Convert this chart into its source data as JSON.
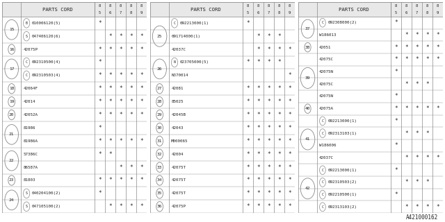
{
  "bg_color": "#ffffff",
  "line_color": "#888888",
  "text_color": "#222222",
  "part_num_label": "A421000162",
  "col_headers": [
    "85",
    "86",
    "87",
    "88",
    "89"
  ],
  "tables": [
    {
      "rows": [
        {
          "ref": "15",
          "subrows": [
            {
              "code": "B",
              "part": "010006120(5)",
              "stars": [
                true,
                false,
                false,
                false,
                false
              ]
            },
            {
              "code": "S",
              "part": "047406120(6)",
              "stars": [
                false,
                true,
                true,
                true,
                true
              ]
            }
          ]
        },
        {
          "ref": "16",
          "subrows": [
            {
              "code": "",
              "part": "42075P",
              "stars": [
                true,
                true,
                true,
                true,
                true
              ]
            }
          ]
        },
        {
          "ref": "17",
          "subrows": [
            {
              "code": "C",
              "part": "092310500(4)",
              "stars": [
                true,
                false,
                false,
                false,
                false
              ]
            },
            {
              "code": "C",
              "part": "092310503(4)",
              "stars": [
                true,
                true,
                true,
                true,
                true
              ]
            }
          ]
        },
        {
          "ref": "18",
          "subrows": [
            {
              "code": "",
              "part": "42064F",
              "stars": [
                true,
                true,
                true,
                true,
                true
              ]
            }
          ]
        },
        {
          "ref": "19",
          "subrows": [
            {
              "code": "",
              "part": "42014",
              "stars": [
                true,
                true,
                true,
                true,
                true
              ]
            }
          ]
        },
        {
          "ref": "20",
          "subrows": [
            {
              "code": "",
              "part": "42052A",
              "stars": [
                true,
                true,
                true,
                true,
                true
              ]
            }
          ]
        },
        {
          "ref": "21",
          "subrows": [
            {
              "code": "",
              "part": "81986",
              "stars": [
                true,
                false,
                false,
                false,
                false
              ]
            },
            {
              "code": "",
              "part": "81986A",
              "stars": [
                true,
                true,
                true,
                true,
                true
              ]
            }
          ]
        },
        {
          "ref": "22",
          "subrows": [
            {
              "code": "",
              "part": "57386C",
              "stars": [
                true,
                true,
                false,
                false,
                false
              ]
            },
            {
              "code": "",
              "part": "86587A",
              "stars": [
                false,
                false,
                true,
                true,
                true
              ]
            }
          ]
        },
        {
          "ref": "23",
          "subrows": [
            {
              "code": "",
              "part": "81803",
              "stars": [
                true,
                true,
                true,
                true,
                true
              ]
            }
          ]
        },
        {
          "ref": "24",
          "subrows": [
            {
              "code": "S",
              "part": "040204100(2)",
              "stars": [
                true,
                false,
                false,
                false,
                false
              ]
            },
            {
              "code": "S",
              "part": "047105100(2)",
              "stars": [
                false,
                true,
                true,
                true,
                true
              ]
            }
          ]
        }
      ]
    },
    {
      "rows": [
        {
          "ref": "25",
          "subrows": [
            {
              "code": "C",
              "part": "092213000(1)",
              "stars": [
                true,
                false,
                false,
                false,
                false
              ]
            },
            {
              "code": "",
              "part": "091714000(1)",
              "stars": [
                false,
                true,
                true,
                true,
                false
              ]
            },
            {
              "code": "",
              "part": "42037C",
              "stars": [
                false,
                true,
                true,
                true,
                true
              ]
            }
          ]
        },
        {
          "ref": "26",
          "subrows": [
            {
              "code": "N",
              "part": "023705000(5)",
              "stars": [
                true,
                true,
                true,
                true,
                false
              ]
            },
            {
              "code": "",
              "part": "N370014",
              "stars": [
                false,
                false,
                false,
                false,
                true
              ]
            }
          ]
        },
        {
          "ref": "27",
          "subrows": [
            {
              "code": "",
              "part": "42081",
              "stars": [
                true,
                true,
                true,
                true,
                true
              ]
            }
          ]
        },
        {
          "ref": "28",
          "subrows": [
            {
              "code": "",
              "part": "85025",
              "stars": [
                true,
                true,
                true,
                true,
                true
              ]
            }
          ]
        },
        {
          "ref": "29",
          "subrows": [
            {
              "code": "",
              "part": "42045B",
              "stars": [
                true,
                true,
                true,
                true,
                true
              ]
            }
          ]
        },
        {
          "ref": "30",
          "subrows": [
            {
              "code": "",
              "part": "42043",
              "stars": [
                true,
                true,
                true,
                true,
                true
              ]
            }
          ]
        },
        {
          "ref": "31",
          "subrows": [
            {
              "code": "",
              "part": "M000065",
              "stars": [
                true,
                true,
                true,
                true,
                true
              ]
            }
          ]
        },
        {
          "ref": "32",
          "subrows": [
            {
              "code": "",
              "part": "42004",
              "stars": [
                true,
                true,
                true,
                true,
                true
              ]
            }
          ]
        },
        {
          "ref": "33",
          "subrows": [
            {
              "code": "",
              "part": "42075T",
              "stars": [
                true,
                true,
                true,
                true,
                true
              ]
            }
          ]
        },
        {
          "ref": "34",
          "subrows": [
            {
              "code": "",
              "part": "42075T",
              "stars": [
                true,
                true,
                true,
                true,
                true
              ]
            }
          ]
        },
        {
          "ref": "35",
          "subrows": [
            {
              "code": "",
              "part": "42075T",
              "stars": [
                true,
                true,
                true,
                true,
                true
              ]
            }
          ]
        },
        {
          "ref": "36",
          "subrows": [
            {
              "code": "",
              "part": "42075P",
              "stars": [
                true,
                true,
                true,
                true,
                true
              ]
            }
          ]
        }
      ]
    },
    {
      "rows": [
        {
          "ref": "37",
          "subrows": [
            {
              "code": "C",
              "part": "092308000(2)",
              "stars": [
                true,
                false,
                false,
                false,
                false
              ]
            },
            {
              "code": "",
              "part": "W186013",
              "stars": [
                false,
                true,
                true,
                true,
                true
              ]
            }
          ]
        },
        {
          "ref": "38",
          "subrows": [
            {
              "code": "",
              "part": "42051",
              "stars": [
                true,
                true,
                true,
                true,
                true
              ]
            }
          ]
        },
        {
          "ref": "39",
          "subrows": [
            {
              "code": "",
              "part": "42075C",
              "stars": [
                true,
                true,
                true,
                true,
                true
              ]
            },
            {
              "code": "",
              "part": "42075N",
              "stars": [
                true,
                false,
                false,
                false,
                false
              ]
            },
            {
              "code": "",
              "part": "42075C",
              "stars": [
                false,
                true,
                true,
                true,
                false
              ]
            },
            {
              "code": "",
              "part": "42075N",
              "stars": [
                true,
                false,
                false,
                false,
                false
              ]
            }
          ]
        },
        {
          "ref": "40",
          "subrows": [
            {
              "code": "",
              "part": "42075A",
              "stars": [
                true,
                true,
                true,
                true,
                true
              ]
            }
          ]
        },
        {
          "ref": "41",
          "subrows": [
            {
              "code": "C",
              "part": "092213000(1)",
              "stars": [
                true,
                false,
                false,
                false,
                false
              ]
            },
            {
              "code": "C",
              "part": "092313103(1)",
              "stars": [
                false,
                true,
                true,
                true,
                false
              ]
            },
            {
              "code": "",
              "part": "W186006",
              "stars": [
                true,
                false,
                false,
                false,
                false
              ]
            },
            {
              "code": "",
              "part": "42037C",
              "stars": [
                false,
                true,
                true,
                true,
                true
              ]
            }
          ]
        },
        {
          "ref": "42",
          "subrows": [
            {
              "code": "C",
              "part": "092213000(1)",
              "stars": [
                true,
                false,
                false,
                false,
                false
              ]
            },
            {
              "code": "C",
              "part": "092310503(2)",
              "stars": [
                false,
                true,
                true,
                true,
                false
              ]
            },
            {
              "code": "C",
              "part": "092210500(1)",
              "stars": [
                true,
                false,
                false,
                false,
                false
              ]
            },
            {
              "code": "C",
              "part": "092313103(2)",
              "stars": [
                false,
                true,
                true,
                true,
                true
              ]
            }
          ]
        }
      ]
    }
  ]
}
